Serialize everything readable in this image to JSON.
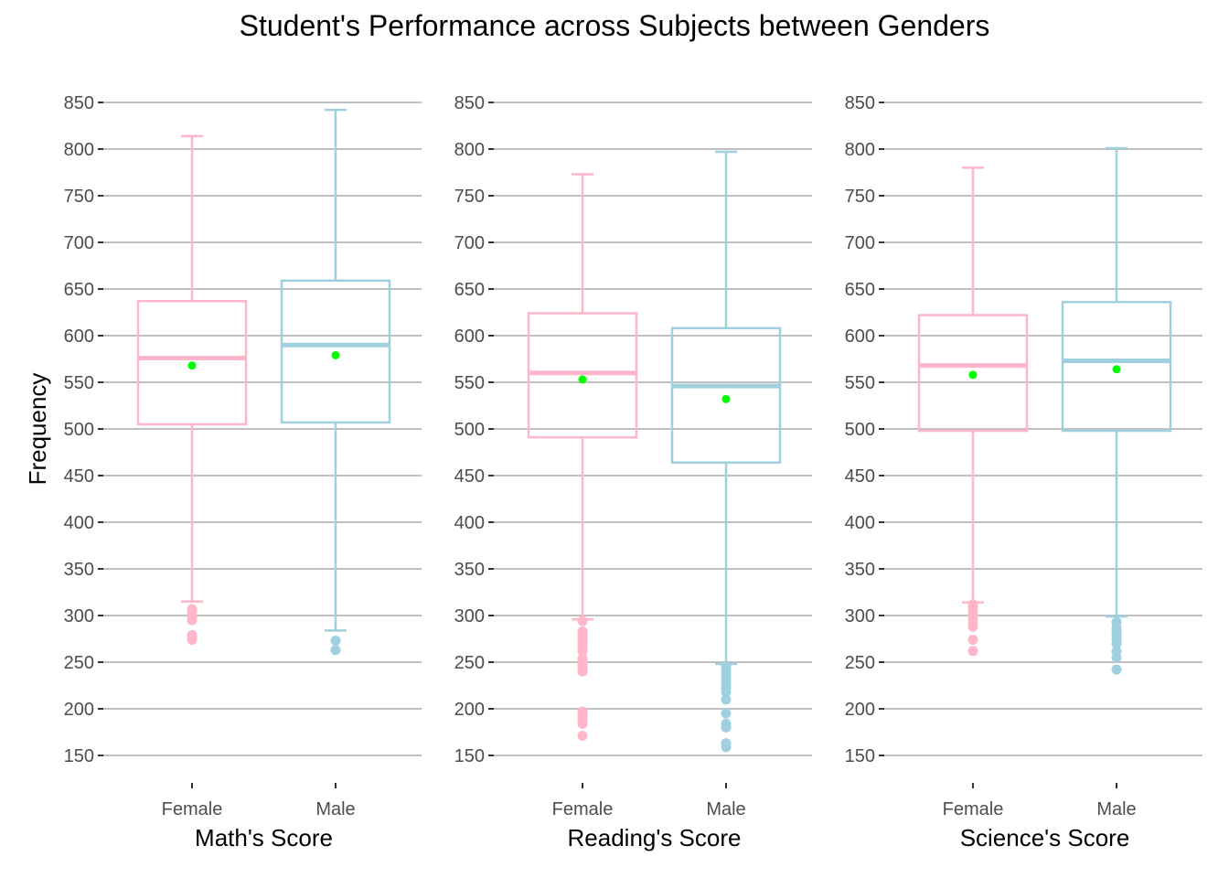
{
  "chart_data": {
    "type": "boxplot",
    "title": "Student's Performance across Subjects between Genders",
    "ylabel": "Frequency",
    "ylim": [
      130,
      860
    ],
    "yticks": [
      150,
      200,
      250,
      300,
      350,
      400,
      450,
      500,
      550,
      600,
      650,
      700,
      750,
      800,
      850
    ],
    "grid": true,
    "categories": [
      "Female",
      "Male"
    ],
    "colors": {
      "Female": "#ffb6c8",
      "Male": "#9fd0de",
      "mean": "#00ff00"
    },
    "panels": [
      {
        "xlabel": "Math's Score",
        "boxes": [
          {
            "category": "Female",
            "whisker_low": 315,
            "q1": 505,
            "median": 576,
            "q3": 637,
            "whisker_high": 814,
            "mean": 568,
            "outliers": [
              307,
              304,
              298,
              295,
              279,
              276,
              274
            ]
          },
          {
            "category": "Male",
            "whisker_low": 284,
            "q1": 507,
            "median": 590,
            "q3": 659,
            "whisker_high": 842,
            "mean": 579,
            "outliers": [
              273,
              263
            ]
          }
        ]
      },
      {
        "xlabel": "Reading's Score",
        "boxes": [
          {
            "category": "Female",
            "whisker_low": 296,
            "q1": 491,
            "median": 560,
            "q3": 624,
            "whisker_high": 773,
            "mean": 553,
            "outliers": [
              294,
              283,
              279,
              275,
              271,
              266,
              262,
              254,
              251,
              247,
              243,
              240,
              197,
              193,
              189,
              184,
              171
            ]
          },
          {
            "category": "Male",
            "whisker_low": 248,
            "q1": 464,
            "median": 546,
            "q3": 608,
            "whisker_high": 797,
            "mean": 532,
            "outliers": [
              246,
              242,
              238,
              234,
              230,
              226,
              222,
              218,
              210,
              195,
              184,
              180,
              163,
              159
            ]
          }
        ]
      },
      {
        "xlabel": "Science's Score",
        "boxes": [
          {
            "category": "Female",
            "whisker_low": 314,
            "q1": 498,
            "median": 568,
            "q3": 622,
            "whisker_high": 780,
            "mean": 558,
            "outliers": [
              312,
              309,
              305,
              300,
              296,
              291,
              288,
              274,
              262
            ]
          },
          {
            "category": "Male",
            "whisker_low": 299,
            "q1": 498,
            "median": 573,
            "q3": 636,
            "whisker_high": 801,
            "mean": 564,
            "outliers": [
              293,
              287,
              283,
              279,
              275,
              270,
              262,
              255,
              242
            ]
          }
        ]
      }
    ]
  }
}
